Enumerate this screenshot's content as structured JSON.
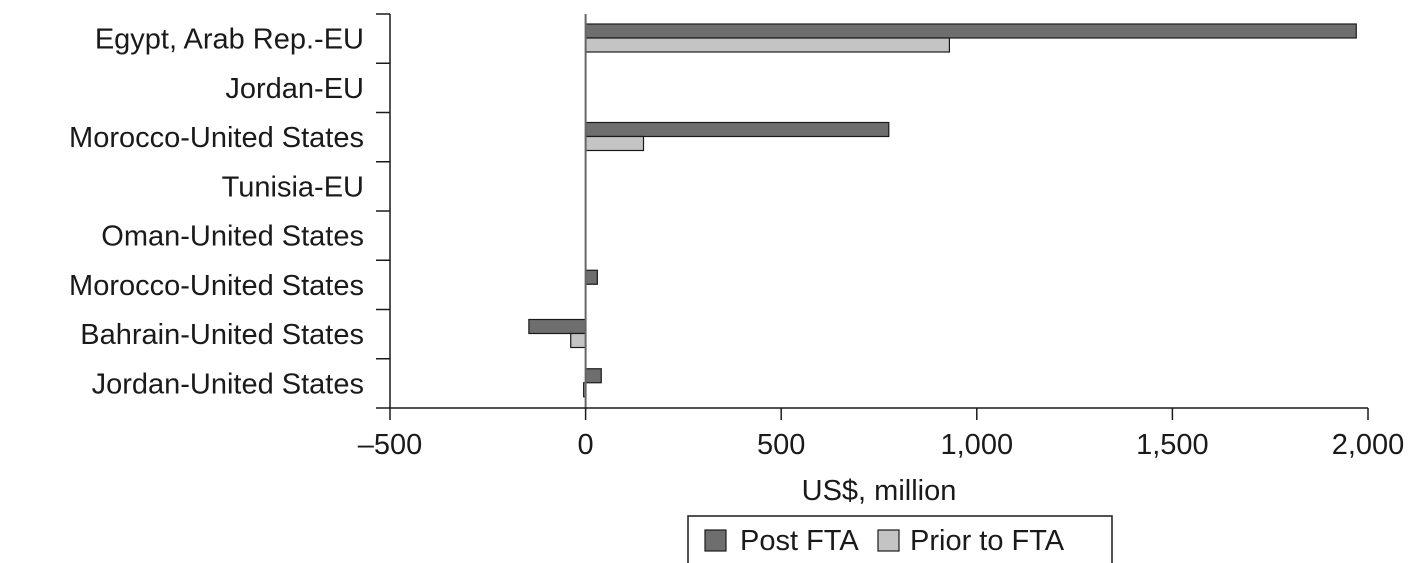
{
  "chart_data": {
    "type": "bar",
    "orientation": "horizontal",
    "categories": [
      "Egypt, Arab Rep.-EU",
      "Jordan-EU",
      "Morocco-United States",
      "Tunisia-EU",
      "Oman-United States",
      "Morocco-United States",
      "Bahrain-United States",
      "Jordan-United States"
    ],
    "series": [
      {
        "name": "Post FTA",
        "color": "#6e6e6e",
        "values": [
          1970,
          0,
          775,
          0,
          0,
          30,
          -145,
          40
        ]
      },
      {
        "name": "Prior to FTA",
        "color": "#c4c4c4",
        "values": [
          930,
          0,
          148,
          0,
          0,
          0,
          -38,
          -5
        ]
      }
    ],
    "xlabel": "US$, million",
    "ylabel": "",
    "xlim": [
      -500,
      2000
    ],
    "xticks": [
      -500,
      0,
      500,
      1000,
      1500,
      2000
    ],
    "xtick_labels": [
      "–500",
      "0",
      "500",
      "1,000",
      "1,500",
      "2,000"
    ],
    "grid": false,
    "legend_position": "bottom"
  }
}
